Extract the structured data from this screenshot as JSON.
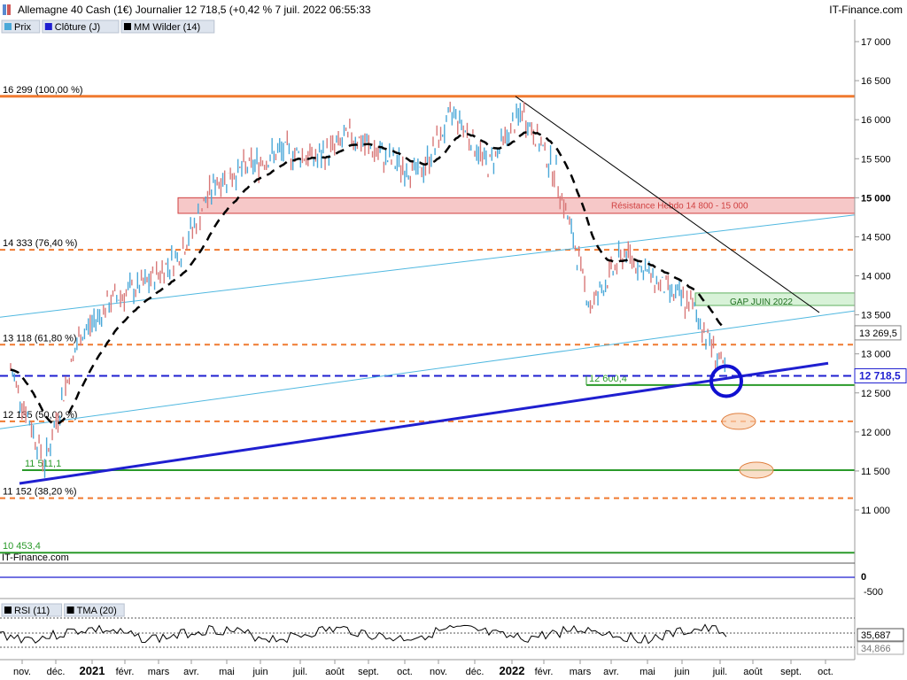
{
  "header": {
    "title": "Allemagne 40 Cash (1€) Journalier 12 718,5 (+0,42 % 7 juil. 2022 06:55:33",
    "brand": "IT-Finance.com"
  },
  "legend": {
    "items": [
      {
        "label": "Prix",
        "color": "#4aa8d8",
        "icon": "price-swatch-icon"
      },
      {
        "label": "Clôture (J)",
        "color": "#1f1fd0",
        "icon": "close-swatch-icon"
      },
      {
        "label": "MM Wilder (14)",
        "color": "#000000",
        "icon": "ma-swatch-icon"
      }
    ]
  },
  "watermark": "IT-Finance.com",
  "rsi_legend": {
    "items": [
      {
        "label": "RSI (11)",
        "icon": "rsi-swatch-icon"
      },
      {
        "label": "TMA (20)",
        "icon": "tma-swatch-icon"
      }
    ],
    "values": [
      "35,687",
      "34,866"
    ]
  },
  "chart_data": {
    "type": "candlestick",
    "instrument": "Allemagne 40 Cash (1€)",
    "timeframe": "Journalier",
    "last_price": "12 718,5",
    "x_ticks": [
      "nov.",
      "déc.",
      "2021",
      "févr.",
      "mars",
      "avr.",
      "mai",
      "juin",
      "juil.",
      "août",
      "sept.",
      "oct.",
      "nov.",
      "déc.",
      "2022",
      "févr.",
      "mars",
      "avr.",
      "mai",
      "juin",
      "juil.",
      "août",
      "sept.",
      "oct."
    ],
    "y_ticks": [
      "17 000",
      "16 500",
      "16 000",
      "15 500",
      "15 000",
      "14 500",
      "14 000",
      "13 500",
      "13 000",
      "12 500",
      "12 000",
      "11 500",
      "11 000"
    ],
    "y_range": [
      10400,
      17200
    ],
    "price_path_monthly": [
      {
        "month": "2020-10",
        "value": 12800
      },
      {
        "month": "2020-11",
        "value": 11600
      },
      {
        "month": "2020-12",
        "value": 13200
      },
      {
        "month": "2021-01",
        "value": 13700
      },
      {
        "month": "2021-02",
        "value": 13900
      },
      {
        "month": "2021-03",
        "value": 14300
      },
      {
        "month": "2021-04",
        "value": 15200
      },
      {
        "month": "2021-05",
        "value": 15400
      },
      {
        "month": "2021-06",
        "value": 15600
      },
      {
        "month": "2021-07",
        "value": 15500
      },
      {
        "month": "2021-08",
        "value": 15800
      },
      {
        "month": "2021-09",
        "value": 15500
      },
      {
        "month": "2021-10",
        "value": 15300
      },
      {
        "month": "2021-11",
        "value": 16100
      },
      {
        "month": "2021-12",
        "value": 15400
      },
      {
        "month": "2022-01",
        "value": 16100
      },
      {
        "month": "2022-02",
        "value": 15300
      },
      {
        "month": "2022-03",
        "value": 13600
      },
      {
        "month": "2022-04",
        "value": 14300
      },
      {
        "month": "2022-05",
        "value": 13900
      },
      {
        "month": "2022-06",
        "value": 13600
      },
      {
        "month": "2022-07",
        "value": 12718
      }
    ],
    "horizontal_levels": [
      {
        "label": "16 299 (100,00 %)",
        "value": 16299,
        "color": "#f07a30",
        "style": "solid"
      },
      {
        "label": "14 333 (76,40 %)",
        "value": 14333,
        "color": "#f07a30",
        "style": "dashed"
      },
      {
        "label": "13 118 (61,80 %)",
        "value": 13118,
        "color": "#f07a30",
        "style": "dashed"
      },
      {
        "label": "12 135 (50,00 %)",
        "value": 12135,
        "color": "#f07a30",
        "style": "dashed"
      },
      {
        "label": "11 152 (38,20 %)",
        "value": 11152,
        "color": "#f07a30",
        "style": "dashed"
      },
      {
        "label": "11 511,1",
        "value": 11511.1,
        "color": "#2a9a2a",
        "style": "solid"
      },
      {
        "label": "12 600,4",
        "value": 12600.4,
        "color": "#2a9a2a",
        "style": "solid"
      },
      {
        "label": "10 453,4",
        "value": 10453.4,
        "color": "#2a9a2a",
        "style": "solid"
      },
      {
        "label": "",
        "value": 12718.5,
        "color": "#1f1fd0",
        "style": "dashed"
      }
    ],
    "zones": [
      {
        "label": "Résistance Hebdo 14 800 - 15 000",
        "from": 14800,
        "to": 15000,
        "color": "#f6c8c8"
      },
      {
        "label": "GAP JUIN 2022",
        "from": 13620,
        "to": 13780,
        "color": "#d8f2d8"
      }
    ],
    "price_labels": [
      {
        "text": "13 269,5",
        "value": 13269.5
      },
      {
        "text": "12 718,5",
        "value": 12718.5
      }
    ],
    "rsi": {
      "value": "35,687",
      "tma": "34,866"
    },
    "secondary_panel": {
      "ticks": [
        "0",
        "-500"
      ]
    }
  }
}
